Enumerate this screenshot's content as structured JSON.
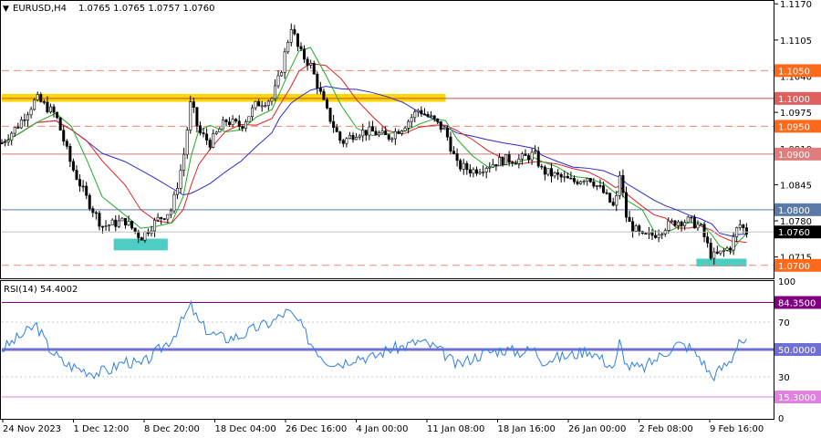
{
  "header": {
    "symbol": "EURUSD,H4",
    "ohlc": "1.0765 1.0765 1.0757 1.0760",
    "menu_icon": "triangle-down-icon"
  },
  "rsi_header": {
    "label": "RSI(14) 54.4002"
  },
  "chart_data": [
    {
      "type": "candlestick",
      "title": "EURUSD,H4",
      "ylim": [
        1.068,
        1.1172
      ],
      "y_ticks": [
        "1.1170",
        "1.1105",
        "1.1040",
        "1.0975",
        "1.0910",
        "1.0845",
        "1.0780",
        "1.0715"
      ],
      "x_labels": [
        "24 Nov 2023",
        "1 Dec 12:00",
        "8 Dec 20:00",
        "18 Dec 04:00",
        "26 Dec 16:00",
        "4 Jan 00:00",
        "11 Jan 08:00",
        "18 Jan 16:00",
        "26 Jan 00:00",
        "2 Feb 08:00",
        "9 Feb 16:00"
      ],
      "current_price": {
        "value": 1.076,
        "label": "1.0760"
      },
      "horizontal_levels": [
        {
          "value": 1.105,
          "label": "1.1050",
          "style": "dashed",
          "color": "#f0896e",
          "label_bg": "#ff6a1a"
        },
        {
          "value": 1.1,
          "label": "1.1000",
          "style": "solid",
          "color": "#c84b4b",
          "label_bg": "#e06060"
        },
        {
          "value": 1.095,
          "label": "1.0950",
          "style": "dashed",
          "color": "#f0896e",
          "label_bg": "#ff6a1a"
        },
        {
          "value": 1.09,
          "label": "1.0900",
          "style": "solid",
          "color": "#c87c7c",
          "label_bg": "#e07c7c"
        },
        {
          "value": 1.08,
          "label": "1.0800",
          "style": "solid",
          "color": "#5a7aa8",
          "label_bg": "#5a7aa8"
        },
        {
          "value": 1.07,
          "label": "1.0700",
          "style": "dashed",
          "color": "#f0896e",
          "label_bg": "#ff6a1a"
        }
      ],
      "highlight_zones": [
        {
          "x_start": 0.0,
          "x_end": 0.575,
          "y_low": 1.0994,
          "y_high": 1.1008,
          "color": "#ffd700"
        },
        {
          "x_start": 0.145,
          "x_end": 0.215,
          "y_low": 1.0727,
          "y_high": 1.0748,
          "color": "#4ecdc4"
        },
        {
          "x_start": 0.9,
          "x_end": 0.965,
          "y_low": 1.0698,
          "y_high": 1.0712,
          "color": "#4ecdc4"
        }
      ],
      "close_path": [
        [
          0,
          1.092
        ],
        [
          0.02,
          1.095
        ],
        [
          0.045,
          1.1
        ],
        [
          0.07,
          1.097
        ],
        [
          0.09,
          1.088
        ],
        [
          0.11,
          1.082
        ],
        [
          0.13,
          1.077
        ],
        [
          0.16,
          1.078
        ],
        [
          0.18,
          1.075
        ],
        [
          0.2,
          1.078
        ],
        [
          0.22,
          1.08
        ],
        [
          0.235,
          1.089
        ],
        [
          0.245,
          1.0995
        ],
        [
          0.255,
          1.094
        ],
        [
          0.27,
          1.092
        ],
        [
          0.29,
          1.096
        ],
        [
          0.31,
          1.095
        ],
        [
          0.33,
          1.099
        ],
        [
          0.35,
          1.1
        ],
        [
          0.36,
          1.104
        ],
        [
          0.375,
          1.113
        ],
        [
          0.385,
          1.1085
        ],
        [
          0.4,
          1.106
        ],
        [
          0.42,
          1.098
        ],
        [
          0.44,
          1.092
        ],
        [
          0.46,
          1.094
        ],
        [
          0.48,
          1.094
        ],
        [
          0.5,
          1.093
        ],
        [
          0.52,
          1.095
        ],
        [
          0.54,
          1.098
        ],
        [
          0.56,
          1.096
        ],
        [
          0.575,
          1.094
        ],
        [
          0.59,
          1.088
        ],
        [
          0.61,
          1.087
        ],
        [
          0.63,
          1.088
        ],
        [
          0.65,
          1.089
        ],
        [
          0.67,
          1.089
        ],
        [
          0.69,
          1.09
        ],
        [
          0.7,
          1.087
        ],
        [
          0.72,
          1.086
        ],
        [
          0.74,
          1.085
        ],
        [
          0.76,
          1.086
        ],
        [
          0.78,
          1.083
        ],
        [
          0.795,
          1.08
        ],
        [
          0.8,
          1.087
        ],
        [
          0.81,
          1.078
        ],
        [
          0.83,
          1.075
        ],
        [
          0.845,
          1.0755
        ],
        [
          0.86,
          1.077
        ],
        [
          0.875,
          1.078
        ],
        [
          0.89,
          1.078
        ],
        [
          0.905,
          1.077
        ],
        [
          0.92,
          1.0715
        ],
        [
          0.93,
          1.072
        ],
        [
          0.945,
          1.0735
        ],
        [
          0.955,
          1.0775
        ],
        [
          0.965,
          1.076
        ]
      ]
    },
    {
      "type": "line",
      "title": "RSI(14)",
      "ylim": [
        0,
        100
      ],
      "y_ticks": [
        "100",
        "70",
        "50",
        "30",
        "0"
      ],
      "levels": [
        {
          "value": 84.35,
          "label": "84.3500",
          "color": "#800080",
          "label_bg": "#800080"
        },
        {
          "value": 50,
          "label": "50.0000",
          "color": "#6f6fd6",
          "label_bg": "#6f6fd6"
        },
        {
          "value": 15.3,
          "label": "15.3000",
          "color": "#e080e0",
          "label_bg": "#e080e0"
        }
      ],
      "series": [
        {
          "values": [
            [
              0,
              50
            ],
            [
              0.02,
              58
            ],
            [
              0.045,
              68
            ],
            [
              0.06,
              52
            ],
            [
              0.08,
              40
            ],
            [
              0.1,
              36
            ],
            [
              0.12,
              33
            ],
            [
              0.14,
              35
            ],
            [
              0.16,
              42
            ],
            [
              0.18,
              38
            ],
            [
              0.2,
              48
            ],
            [
              0.22,
              58
            ],
            [
              0.235,
              72
            ],
            [
              0.245,
              82
            ],
            [
              0.255,
              70
            ],
            [
              0.27,
              62
            ],
            [
              0.29,
              58
            ],
            [
              0.31,
              60
            ],
            [
              0.33,
              66
            ],
            [
              0.35,
              70
            ],
            [
              0.37,
              78
            ],
            [
              0.385,
              70
            ],
            [
              0.4,
              55
            ],
            [
              0.42,
              42
            ],
            [
              0.44,
              40
            ],
            [
              0.46,
              45
            ],
            [
              0.48,
              44
            ],
            [
              0.5,
              50
            ],
            [
              0.52,
              52
            ],
            [
              0.54,
              56
            ],
            [
              0.56,
              52
            ],
            [
              0.575,
              46
            ],
            [
              0.59,
              38
            ],
            [
              0.61,
              44
            ],
            [
              0.63,
              48
            ],
            [
              0.65,
              50
            ],
            [
              0.67,
              48
            ],
            [
              0.69,
              50
            ],
            [
              0.7,
              42
            ],
            [
              0.72,
              44
            ],
            [
              0.74,
              46
            ],
            [
              0.76,
              50
            ],
            [
              0.78,
              42
            ],
            [
              0.795,
              36
            ],
            [
              0.8,
              56
            ],
            [
              0.81,
              38
            ],
            [
              0.83,
              36
            ],
            [
              0.845,
              42
            ],
            [
              0.86,
              48
            ],
            [
              0.875,
              54
            ],
            [
              0.89,
              52
            ],
            [
              0.905,
              44
            ],
            [
              0.92,
              30
            ],
            [
              0.93,
              35
            ],
            [
              0.945,
              42
            ],
            [
              0.955,
              58
            ],
            [
              0.965,
              54.4
            ]
          ],
          "color": "#2f7fdf"
        }
      ]
    }
  ]
}
